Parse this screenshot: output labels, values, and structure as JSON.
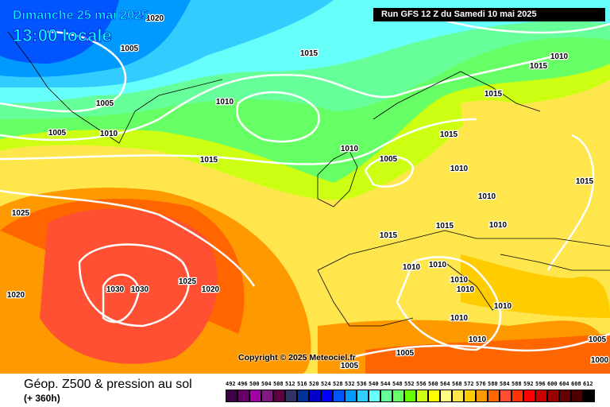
{
  "header": {
    "date": "Dimanche 25 mai 2025",
    "time": "13:00 locale",
    "run": "Run GFS 12 Z du Samedi 10 mai 2025"
  },
  "copyright": "Copyright © 2025 Meteociel.fr",
  "footer": {
    "title": "Géop. Z500 & pression au sol",
    "subtitle": "(+ 360h)"
  },
  "legend": {
    "levels": [
      "492",
      "496",
      "500",
      "504",
      "508",
      "512",
      "516",
      "520",
      "524",
      "528",
      "532",
      "536",
      "540",
      "544",
      "548",
      "552",
      "556",
      "560",
      "564",
      "568",
      "572",
      "576",
      "580",
      "584",
      "588",
      "592",
      "596",
      "600",
      "604",
      "608",
      "612"
    ],
    "colors": [
      "#3d0045",
      "#660066",
      "#a300a8",
      "#801a80",
      "#600040",
      "#333366",
      "#003399",
      "#0000cc",
      "#0000ff",
      "#0055ff",
      "#0099ff",
      "#33ccff",
      "#66ffff",
      "#66ff99",
      "#66ff66",
      "#66ff00",
      "#ccff11",
      "#ffff00",
      "#ffff80",
      "#ffe64d",
      "#ffcc00",
      "#ff9900",
      "#ff6600",
      "#ff5033",
      "#ff3300",
      "#ff0000",
      "#cc0000",
      "#990000",
      "#660000",
      "#4d0000",
      "#000000"
    ]
  },
  "isobar_labels": [
    "1020",
    "1005",
    "1015",
    "1010",
    "1015",
    "1005",
    "1010",
    "1015",
    "1005",
    "1010",
    "1010",
    "1015",
    "1005",
    "1010",
    "1015",
    "1015",
    "1010",
    "1025",
    "1010",
    "1015",
    "1015",
    "1010",
    "1010",
    "1010",
    "1010",
    "1030",
    "1030",
    "1025",
    "1020",
    "1020",
    "1010",
    "1010",
    "1010",
    "1005",
    "1005",
    "1005",
    "1000"
  ]
}
